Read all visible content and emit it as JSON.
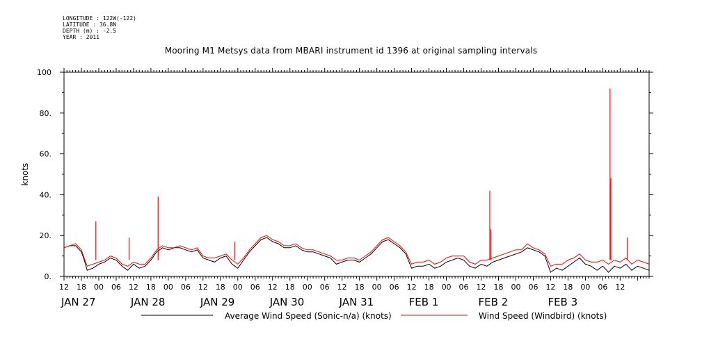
{
  "header": {
    "longitude": "LONGITUDE : 122W(-122)",
    "latitude": "LATITUDE : 36.8N",
    "depth": "DEPTH (m) : -2.5",
    "year": "YEAR : 2011"
  },
  "chart_data": {
    "type": "line",
    "title": "Mooring M1 Metsys data from MBARI instrument id 1396 at original sampling intervals",
    "ylabel": "knots",
    "xlabel": "",
    "ylim": [
      0,
      100
    ],
    "y_ticks": [
      0,
      20,
      40,
      60,
      80,
      100
    ],
    "y_tick_labels": [
      "0.",
      "20.",
      "40.",
      "60.",
      "80.",
      "100"
    ],
    "x_range_hours": [
      12,
      214
    ],
    "x_tick_labels": [
      "12",
      "18",
      "00",
      "06",
      "12",
      "18",
      "00",
      "06",
      "12",
      "18",
      "00",
      "06",
      "12",
      "18",
      "00",
      "06",
      "12",
      "18",
      "00",
      "06",
      "12",
      "18",
      "00",
      "06",
      "12",
      "18",
      "00",
      "06",
      "12",
      "18",
      "00",
      "06",
      "12"
    ],
    "day_labels": [
      {
        "text": "JAN 27",
        "hour": 12
      },
      {
        "text": "JAN 28",
        "hour": 36
      },
      {
        "text": "JAN 29",
        "hour": 60
      },
      {
        "text": "JAN 30",
        "hour": 84
      },
      {
        "text": "JAN 31",
        "hour": 108
      },
      {
        "text": "FEB  1",
        "hour": 132
      },
      {
        "text": "FEB  2",
        "hour": 156
      },
      {
        "text": "FEB  3",
        "hour": 180
      }
    ],
    "legend_position": "bottom",
    "series": [
      {
        "name": "Average Wind Speed (Sonic-n/a) (knots)",
        "color": "#000000",
        "x": [
          12,
          14,
          16,
          18,
          19,
          20,
          22,
          24,
          26,
          28,
          30,
          32,
          34,
          36,
          38,
          40,
          42,
          44,
          46,
          48,
          50,
          52,
          54,
          56,
          58,
          60,
          62,
          64,
          66,
          68,
          70,
          72,
          74,
          76,
          78,
          80,
          82,
          84,
          86,
          88,
          90,
          92,
          94,
          96,
          98,
          100,
          102,
          104,
          106,
          108,
          110,
          112,
          114,
          116,
          118,
          120,
          122,
          124,
          126,
          128,
          130,
          132,
          134,
          136,
          138,
          140,
          142,
          144,
          146,
          148,
          150,
          152,
          154,
          156,
          158,
          160,
          162,
          164,
          166,
          168,
          170,
          172,
          174,
          176,
          178,
          180,
          182,
          184,
          186,
          188,
          190,
          192,
          194,
          196,
          198,
          200,
          202,
          204,
          206,
          208,
          210,
          212,
          214
        ],
        "y": [
          14,
          15,
          15,
          12,
          8,
          3,
          4,
          6,
          7,
          9,
          8,
          5,
          3,
          6,
          4,
          5,
          8,
          12,
          14,
          13,
          14,
          14,
          13,
          12,
          13,
          9,
          8,
          7,
          9,
          10,
          6,
          4,
          8,
          12,
          15,
          18,
          19,
          17,
          16,
          14,
          14,
          15,
          13,
          12,
          12,
          11,
          10,
          9,
          6,
          7,
          8,
          8,
          7,
          9,
          11,
          14,
          17,
          18,
          16,
          14,
          11,
          4,
          5,
          5,
          6,
          4,
          5,
          7,
          8,
          9,
          8,
          5,
          4,
          6,
          5,
          7,
          8,
          9,
          10,
          11,
          12,
          14,
          13,
          12,
          10,
          2,
          4,
          3,
          5,
          7,
          9,
          6,
          5,
          3,
          5,
          2,
          5,
          4,
          6,
          3,
          5,
          4,
          3
        ]
      },
      {
        "name": "Wind Speed (Windbird) (knots)",
        "color": "#ff0000",
        "x": [
          12,
          14,
          16,
          18,
          19,
          20,
          22,
          24,
          26,
          28,
          30,
          32,
          34,
          36,
          38,
          40,
          42,
          44,
          46,
          48,
          50,
          52,
          54,
          56,
          58,
          60,
          62,
          64,
          66,
          68,
          70,
          72,
          74,
          76,
          78,
          80,
          82,
          84,
          86,
          88,
          90,
          92,
          94,
          96,
          98,
          100,
          102,
          104,
          106,
          108,
          110,
          112,
          114,
          116,
          118,
          120,
          122,
          124,
          126,
          128,
          130,
          132,
          134,
          136,
          138,
          140,
          142,
          144,
          146,
          148,
          150,
          152,
          154,
          156,
          158,
          160,
          162,
          164,
          166,
          168,
          170,
          172,
          174,
          176,
          178,
          180,
          182,
          184,
          186,
          188,
          190,
          192,
          194,
          196,
          198,
          200,
          202,
          204,
          206,
          208,
          210,
          212,
          214
        ],
        "y": [
          14,
          15,
          16,
          13,
          9,
          5,
          6,
          7,
          8,
          10,
          9,
          6,
          5,
          7,
          6,
          6,
          9,
          13,
          15,
          14,
          14,
          15,
          14,
          13,
          14,
          10,
          9,
          9,
          10,
          11,
          8,
          6,
          9,
          13,
          16,
          19,
          20,
          18,
          17,
          15,
          15,
          16,
          14,
          13,
          13,
          12,
          11,
          10,
          8,
          8,
          9,
          9,
          8,
          10,
          12,
          15,
          18,
          19,
          17,
          15,
          12,
          6,
          7,
          7,
          8,
          6,
          7,
          9,
          10,
          10,
          10,
          7,
          6,
          8,
          8,
          9,
          10,
          11,
          12,
          13,
          13,
          16,
          14,
          13,
          11,
          5,
          6,
          6,
          8,
          9,
          11,
          8,
          7,
          7,
          8,
          6,
          8,
          7,
          9,
          6,
          8,
          7,
          6
        ]
      }
    ],
    "spikes": [
      {
        "series": 1,
        "x": 23,
        "y": 27
      },
      {
        "series": 1,
        "x": 34.5,
        "y": 19
      },
      {
        "series": 1,
        "x": 44.5,
        "y": 39
      },
      {
        "series": 1,
        "x": 71,
        "y": 17
      },
      {
        "series": 1,
        "x": 159,
        "y": 42
      },
      {
        "series": 1,
        "x": 159.4,
        "y": 23
      },
      {
        "series": 1,
        "x": 200.5,
        "y": 92
      },
      {
        "series": 1,
        "x": 200.8,
        "y": 48
      },
      {
        "series": 1,
        "x": 206.5,
        "y": 19
      }
    ]
  }
}
